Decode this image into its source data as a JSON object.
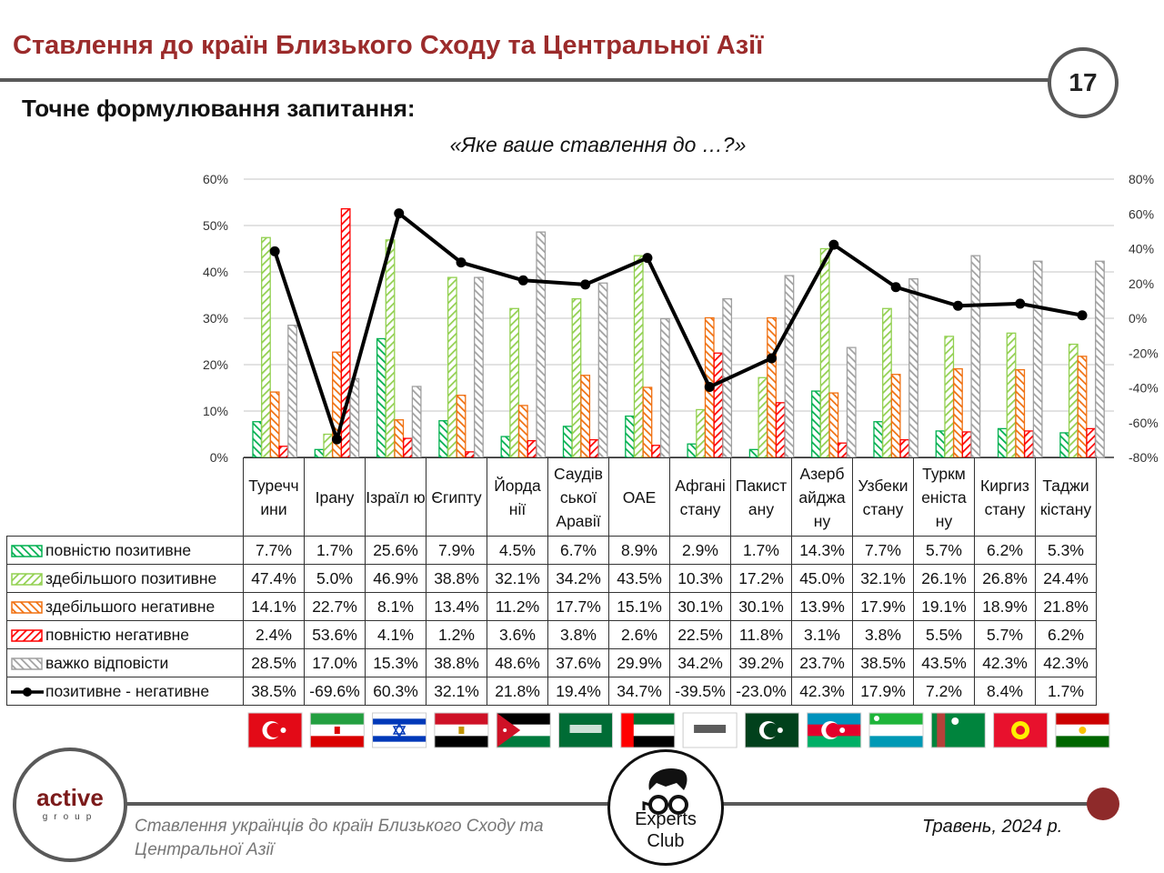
{
  "header": {
    "title": "Ставлення до країн Близького Сходу та Центральної Азії",
    "page_number": "17",
    "subtitle": "Точне формулювання запитання:",
    "question": "«Яке ваше ставлення до …?»"
  },
  "chart_data": {
    "type": "bar",
    "categories": [
      "Туреччини",
      "Ірану",
      "Ізраїлю",
      "Єгипту",
      "Йорданії",
      "Саудівської Аравії",
      "ОАЕ",
      "Афганістану",
      "Пакистану",
      "Азербайджану",
      "Узбекистану",
      "Туркменістану",
      "Киргизстану",
      "Таджикістану"
    ],
    "category_labels": [
      "Туречч ини",
      "Ірану",
      "Ізраїл ю",
      "Єгипту",
      "Йорда нії",
      "Саудів ської Аравії",
      "ОАЕ",
      "Афгані стану",
      "Пакист ану",
      "Азерб айджа ну",
      "Узбеки стану",
      "Туркм еніста ну",
      "Киргиз стану",
      "Таджи кістану"
    ],
    "series": [
      {
        "name": "повністю позитивне",
        "type": "bar",
        "axis": "left",
        "color": "#00b050",
        "values": [
          7.7,
          1.7,
          25.6,
          7.9,
          4.5,
          6.7,
          8.9,
          2.9,
          1.7,
          14.3,
          7.7,
          5.7,
          6.2,
          5.3
        ]
      },
      {
        "name": "здебільшого позитивне",
        "type": "bar",
        "axis": "left",
        "color": "#92d050",
        "values": [
          47.4,
          5.0,
          46.9,
          38.8,
          32.1,
          34.2,
          43.5,
          10.3,
          17.2,
          45.0,
          32.1,
          26.1,
          26.8,
          24.4
        ]
      },
      {
        "name": "здебільшого негативне",
        "type": "bar",
        "axis": "left",
        "color": "#f07010",
        "values": [
          14.1,
          22.7,
          8.1,
          13.4,
          11.2,
          17.7,
          15.1,
          30.1,
          30.1,
          13.9,
          17.9,
          19.1,
          18.9,
          21.8
        ]
      },
      {
        "name": "повністю негативне",
        "type": "bar",
        "axis": "left",
        "color": "#ff0000",
        "values": [
          2.4,
          53.6,
          4.1,
          1.2,
          3.6,
          3.8,
          2.6,
          22.5,
          11.8,
          3.1,
          3.8,
          5.5,
          5.7,
          6.2
        ]
      },
      {
        "name": "важко відповісти",
        "type": "bar",
        "axis": "left",
        "color": "#a0a0a0",
        "values": [
          28.5,
          17.0,
          15.3,
          38.8,
          48.6,
          37.6,
          29.9,
          34.2,
          39.2,
          23.7,
          38.5,
          43.5,
          42.3,
          42.3
        ]
      },
      {
        "name": "позитивне - негативне",
        "type": "line",
        "axis": "right",
        "color": "#000000",
        "values": [
          38.5,
          -69.6,
          60.3,
          32.1,
          21.8,
          19.4,
          34.7,
          -39.5,
          -23.0,
          42.3,
          17.9,
          7.2,
          8.4,
          1.7
        ]
      }
    ],
    "left_axis": {
      "ylim": [
        0,
        60
      ],
      "ticks": [
        "0%",
        "10%",
        "20%",
        "30%",
        "40%",
        "50%",
        "60%"
      ]
    },
    "right_axis": {
      "ylim": [
        -80,
        80
      ],
      "ticks": [
        "-80%",
        "-60%",
        "-40%",
        "-20%",
        "0%",
        "20%",
        "40%",
        "60%",
        "80%"
      ]
    },
    "grid": true,
    "legend": "table-left"
  },
  "flags": [
    {
      "country": "Туреччина",
      "stripes": [
        "#e30a17"
      ],
      "emblem": "crescent-star"
    },
    {
      "country": "Іран",
      "stripes": [
        "#239f40",
        "#ffffff",
        "#da0000"
      ],
      "emblem": "emblem"
    },
    {
      "country": "Ізраїль",
      "stripes": [
        "#ffffff",
        "#0038b8",
        "#ffffff",
        "#ffffff",
        "#0038b8",
        "#ffffff"
      ],
      "emblem": "star-of-david"
    },
    {
      "country": "Єгипет",
      "stripes": [
        "#ce1126",
        "#ffffff",
        "#000000"
      ],
      "emblem": "eagle"
    },
    {
      "country": "Йорданія",
      "stripes": [
        "#000000",
        "#ffffff",
        "#007a3d"
      ],
      "emblem": "triangle"
    },
    {
      "country": "Саудівська Аравія",
      "stripes": [
        "#006c35"
      ],
      "emblem": "shahada"
    },
    {
      "country": "ОАЕ",
      "stripes": [
        "#00732f",
        "#ffffff",
        "#000000"
      ],
      "emblem": "hoist-red"
    },
    {
      "country": "Афганістан",
      "stripes": [
        "#ffffff"
      ],
      "emblem": "shahada"
    },
    {
      "country": "Пакистан",
      "stripes": [
        "#01411c"
      ],
      "emblem": "crescent-star"
    },
    {
      "country": "Азербайджан",
      "stripes": [
        "#0092bc",
        "#e4002b",
        "#00af66"
      ],
      "emblem": "crescent-star"
    },
    {
      "country": "Узбекистан",
      "stripes": [
        "#1eb53a",
        "#ffffff",
        "#0099b5"
      ],
      "emblem": "crescent-stars"
    },
    {
      "country": "Туркменістан",
      "stripes": [
        "#00843d"
      ],
      "emblem": "carpet"
    },
    {
      "country": "Киргизстан",
      "stripes": [
        "#e8112d"
      ],
      "emblem": "sun"
    },
    {
      "country": "Таджикістан",
      "stripes": [
        "#cc0000",
        "#ffffff",
        "#006600"
      ],
      "emblem": "crown"
    }
  ],
  "footer": {
    "logo_left_main": "active",
    "logo_left_sub": "group",
    "caption": "Ставлення українців до країн Близького Сходу та Центральної Азії",
    "logo_center_line1": "Experts",
    "logo_center_line2": "Club",
    "date": "Травень, 2024 р."
  }
}
